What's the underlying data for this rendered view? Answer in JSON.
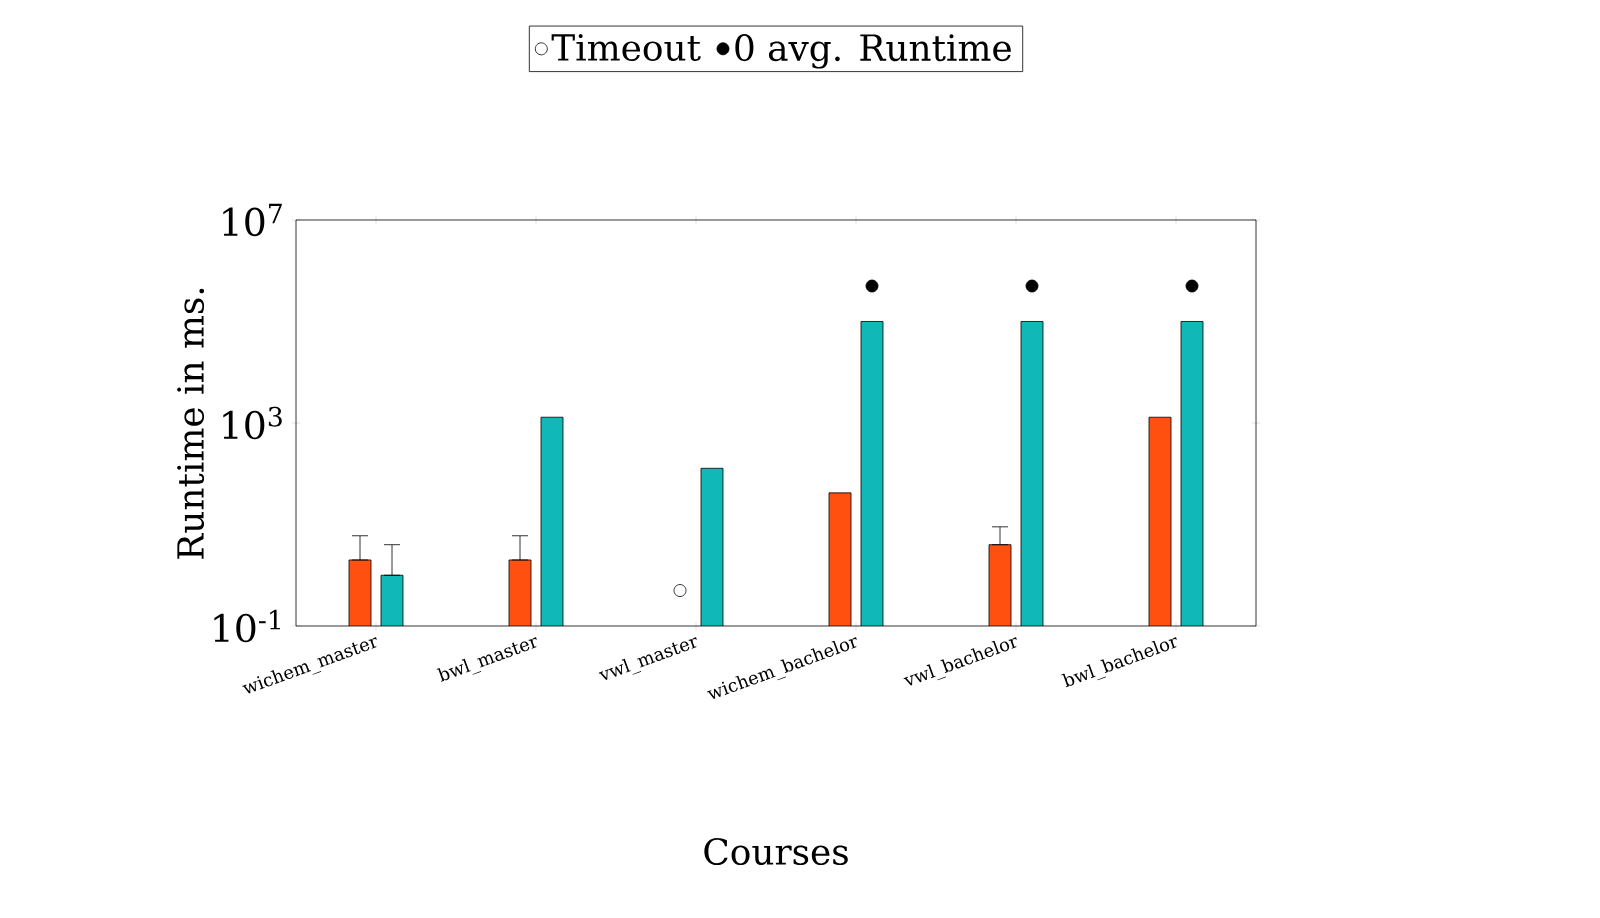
{
  "chart_data": {
    "type": "bar",
    "xlabel": "Courses",
    "ylabel": "Runtime in ms.",
    "log": "y",
    "legend": "top",
    "categories": [
      "wichem_master",
      "bwl_master",
      "vwl_master",
      "wichem_bachelor",
      "vwl_bachelor",
      "bwl_bachelor"
    ],
    "ylim": [
      0.1,
      10000000
    ],
    "yticks": [
      {
        "value": 0.1,
        "label": "10$^{-1}$"
      },
      {
        "value": 1000,
        "label": "10$^{3}$"
      },
      {
        "value": 10000000,
        "label": "10$^{7}$"
      }
    ],
    "series": [
      {
        "color": "#ff5010",
        "values": [
          2,
          2,
          null,
          42,
          4,
          1300
        ],
        "errors": [
          [
            2,
            6
          ],
          [
            2,
            6
          ],
          null,
          null,
          [
            4,
            9
          ],
          null
        ]
      },
      {
        "color": "#10b8b8",
        "values": [
          1,
          1300,
          128,
          100000,
          100000,
          100000
        ],
        "errors": [
          [
            1,
            4
          ],
          null,
          null,
          null,
          null,
          null
        ]
      },
      {
        "type": "scatter",
        "name": "Timeout",
        "marker": "circle",
        "color": "#ffffff",
        "values": [
          null,
          null,
          0.5,
          null,
          null,
          null
        ]
      },
      {
        "type": "scatter",
        "name": "0 avg. Runtime",
        "marker": "circle",
        "color": "#000000",
        "values": [
          null,
          null,
          null,
          500000,
          500000,
          500000
        ]
      }
    ]
  }
}
